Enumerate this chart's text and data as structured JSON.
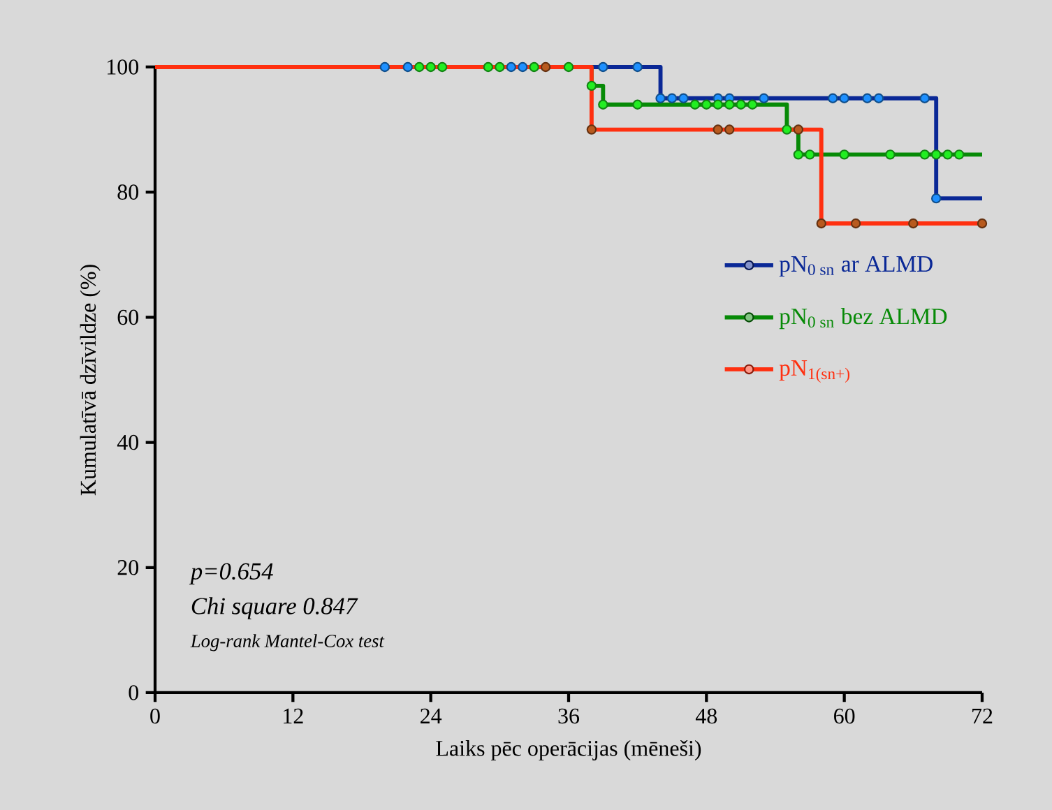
{
  "chart_data": {
    "type": "step",
    "xlabel": "Laiks pēc operācijas (mēneši)",
    "ylabel": "Kumulatīvā dzīvildze (%)",
    "xlim": [
      0,
      72
    ],
    "xticks": [
      0,
      12,
      24,
      36,
      48,
      60,
      72
    ],
    "ylim": [
      0,
      100
    ],
    "yticks": [
      0,
      20,
      40,
      60,
      80,
      100
    ],
    "legend": "right",
    "marker": "circle",
    "annotations": [
      "p=0.654",
      "Chi square 0.847",
      "Log-rank Mantel-Cox test"
    ],
    "series": [
      {
        "name": "pN$_{0 sn}$ ar ALMD",
        "marker": "none",
        "color": "#0a2896",
        "x": [
          0,
          44,
          68,
          72
        ],
        "values": [
          100,
          95,
          79,
          79
        ]
      },
      {
        "type": "scatter",
        "color": "#1e90ff",
        "x": [
          20,
          22,
          31,
          32,
          39,
          42,
          44,
          45,
          46,
          49,
          50,
          53,
          59,
          60,
          62,
          63,
          67,
          68
        ],
        "values": [
          100,
          100,
          100,
          100,
          100,
          100,
          95,
          95,
          95,
          95,
          95,
          95,
          95,
          95,
          95,
          95,
          95,
          79
        ]
      },
      {
        "name": "pN$_{0 sn}$ bez ALMD",
        "marker": "none",
        "color": "#078a07",
        "x": [
          0,
          38,
          39,
          55,
          56,
          72
        ],
        "values": [
          100,
          97,
          94,
          90,
          86,
          86
        ]
      },
      {
        "type": "scatter",
        "color": "#22ee22",
        "x": [
          23,
          24,
          25,
          29,
          30,
          33,
          36,
          38,
          39,
          42,
          47,
          48,
          49,
          50,
          51,
          52,
          55,
          56,
          57,
          60,
          64,
          67,
          68,
          69,
          70
        ],
        "values": [
          100,
          100,
          100,
          100,
          100,
          100,
          100,
          97,
          94,
          94,
          94,
          94,
          94,
          94,
          94,
          94,
          90,
          86,
          86,
          86,
          86,
          86,
          86,
          86,
          86
        ]
      },
      {
        "name": "pN$_{1(sn+)}$",
        "marker": "none",
        "color": "#ff3010",
        "x": [
          0,
          38,
          58,
          72
        ],
        "values": [
          100,
          90,
          75,
          75
        ]
      },
      {
        "type": "scatter",
        "color": "#b85a1e",
        "x": [
          34,
          38,
          49,
          50,
          56,
          58,
          61,
          66,
          72
        ],
        "values": [
          100,
          90,
          90,
          90,
          90,
          75,
          75,
          75,
          75
        ]
      }
    ]
  }
}
